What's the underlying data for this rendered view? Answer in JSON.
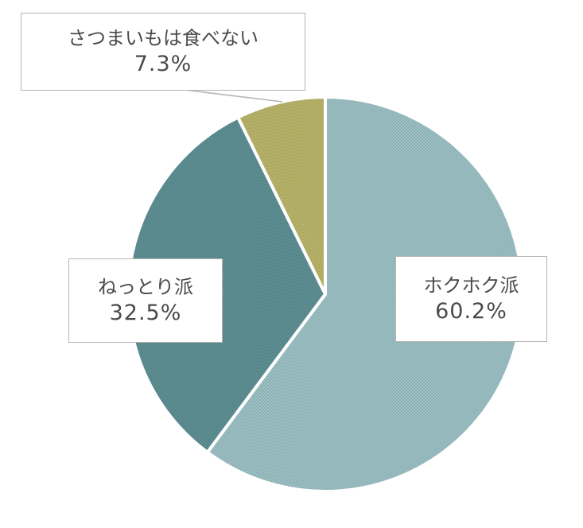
{
  "chart_data": {
    "type": "pie",
    "title": "",
    "start_angle_deg": 0,
    "direction": "clockwise",
    "slices": [
      {
        "label": "ホクホク派",
        "value": 60.2,
        "value_label": "60.2%",
        "color": "#9ebfc3",
        "pattern_dot": "#7fa8ac"
      },
      {
        "label": "ねっとり派",
        "value": 32.5,
        "value_label": "32.5%",
        "color": "#5f9094",
        "pattern_dot": "#4b7a7e"
      },
      {
        "label": "さつまいもは食べない",
        "value": 7.3,
        "value_label": "7.3%",
        "color": "#b8b46c",
        "pattern_dot": "#a09c55"
      }
    ]
  }
}
